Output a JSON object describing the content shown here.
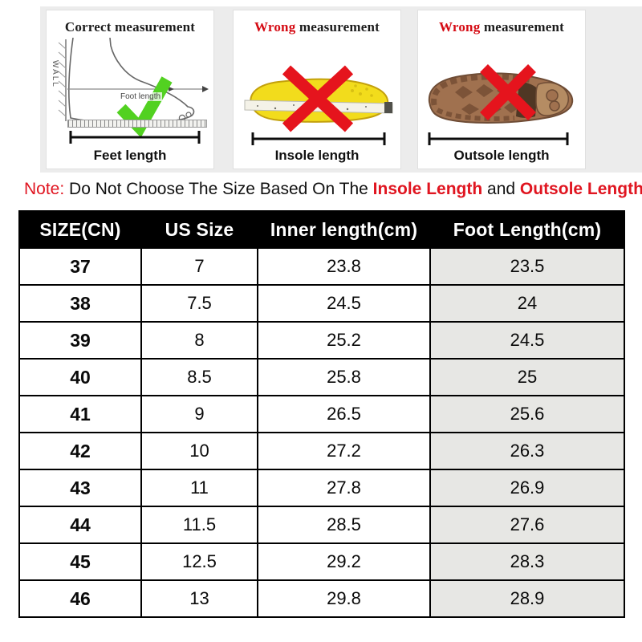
{
  "panels": [
    {
      "status": "correct",
      "title": {
        "prefix": "Correct",
        "rest": "measurement"
      },
      "wall_label": "WALL",
      "arrow_label": "Foot length",
      "caption": "Feet length"
    },
    {
      "status": "wrong",
      "title": {
        "prefix": "Wrong",
        "rest": "measurement"
      },
      "caption": "Insole length"
    },
    {
      "status": "wrong",
      "title": {
        "prefix": "Wrong",
        "rest": "measurement"
      },
      "caption": "Outsole length"
    }
  ],
  "note": {
    "label": "Note:",
    "body": "Do Not Choose The Size Based On The",
    "highlight_1": "Insole Length",
    "conjunction": "and",
    "highlight_2": "Outsole Length",
    "punctuation": "!"
  },
  "size_table": {
    "columns": [
      "SIZE(CN)",
      "US Size",
      "Inner length(cm)",
      "Foot Length(cm)"
    ],
    "rows": [
      [
        "37",
        "7",
        "23.8",
        "23.5"
      ],
      [
        "38",
        "7.5",
        "24.5",
        "24"
      ],
      [
        "39",
        "8",
        "25.2",
        "24.5"
      ],
      [
        "40",
        "8.5",
        "25.8",
        "25"
      ],
      [
        "41",
        "9",
        "26.5",
        "25.6"
      ],
      [
        "42",
        "10",
        "27.2",
        "26.3"
      ],
      [
        "43",
        "11",
        "27.8",
        "26.9"
      ],
      [
        "44",
        "11.5",
        "28.5",
        "27.6"
      ],
      [
        "45",
        "12.5",
        "29.2",
        "28.3"
      ],
      [
        "46",
        "13",
        "29.8",
        "28.9"
      ]
    ]
  },
  "colors": {
    "accent_red": "#e01520",
    "check_green": "#52d121",
    "cross_red": "#e5141d",
    "insole_yellow": "#f2dc1c",
    "outsole_brown": "#a0714f",
    "hero_band_bg": "#ececec",
    "table_header_bg": "#000000",
    "table_header_text": "#ffffff",
    "shaded_column_bg": "#e7e7e4",
    "table_border": "#000000"
  }
}
